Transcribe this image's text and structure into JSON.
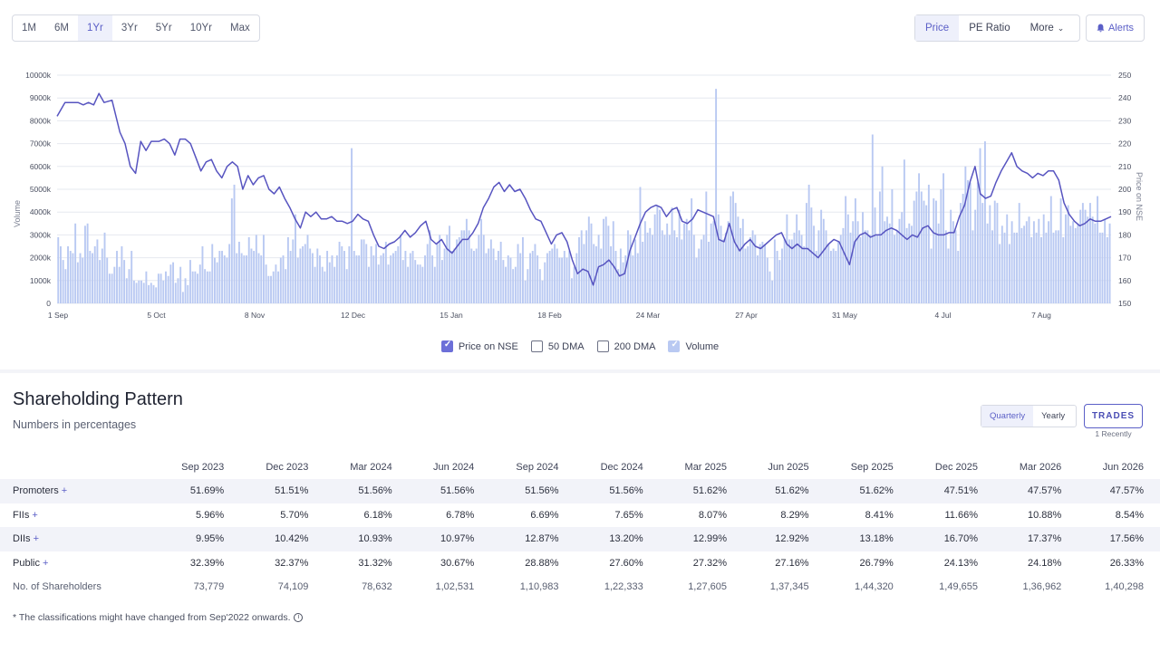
{
  "toolbar": {
    "ranges": [
      "1M",
      "6M",
      "1Yr",
      "3Yr",
      "5Yr",
      "10Yr",
      "Max"
    ],
    "active_range": "1Yr",
    "chart_types": [
      "Price",
      "PE Ratio"
    ],
    "more_label": "More",
    "alerts_label": "Alerts"
  },
  "chart_data": {
    "type": "line",
    "x_tick_labels": [
      "1 Sep",
      "5 Oct",
      "8 Nov",
      "12 Dec",
      "15 Jan",
      "18 Feb",
      "24 Mar",
      "27 Apr",
      "31 May",
      "4 Jul",
      "7 Aug"
    ],
    "y_left_label": "Volume",
    "y_left_ticks": [
      "0",
      "1000k",
      "2000k",
      "3000k",
      "4000k",
      "5000k",
      "6000k",
      "7000k",
      "8000k",
      "9000k",
      "10000k"
    ],
    "y_left_range": [
      0,
      10000
    ],
    "y_right_label": "Price on NSE",
    "y_right_ticks": [
      "150",
      "160",
      "170",
      "180",
      "190",
      "200",
      "210",
      "220",
      "230",
      "240",
      "250"
    ],
    "y_right_range": [
      150,
      250
    ],
    "grid": true,
    "price_anchors": [
      [
        0,
        232
      ],
      [
        3,
        238
      ],
      [
        8,
        238
      ],
      [
        10,
        237
      ],
      [
        12,
        238
      ],
      [
        14,
        237
      ],
      [
        16,
        242
      ],
      [
        18,
        238
      ],
      [
        21,
        239
      ],
      [
        24,
        225
      ],
      [
        26,
        220
      ],
      [
        28,
        210
      ],
      [
        30,
        207
      ],
      [
        32,
        221
      ],
      [
        34,
        217
      ],
      [
        36,
        221
      ],
      [
        39,
        221
      ],
      [
        41,
        222
      ],
      [
        43,
        220
      ],
      [
        45,
        215
      ],
      [
        47,
        222
      ],
      [
        49,
        222
      ],
      [
        51,
        220
      ],
      [
        53,
        214
      ],
      [
        55,
        208
      ],
      [
        57,
        212
      ],
      [
        59,
        213
      ],
      [
        61,
        208
      ],
      [
        63,
        205
      ],
      [
        65,
        210
      ],
      [
        67,
        212
      ],
      [
        69,
        210
      ],
      [
        71,
        200
      ],
      [
        73,
        206
      ],
      [
        75,
        202
      ],
      [
        77,
        205
      ],
      [
        79,
        206
      ],
      [
        81,
        200
      ],
      [
        83,
        198
      ],
      [
        85,
        201
      ],
      [
        87,
        196
      ],
      [
        89,
        192
      ],
      [
        91,
        187
      ],
      [
        93,
        183
      ],
      [
        95,
        190
      ],
      [
        97,
        188
      ],
      [
        99,
        190
      ],
      [
        101,
        187
      ],
      [
        103,
        187
      ],
      [
        105,
        188
      ],
      [
        107,
        186
      ],
      [
        109,
        186
      ],
      [
        111,
        185
      ],
      [
        113,
        186
      ],
      [
        115,
        189
      ],
      [
        117,
        187
      ],
      [
        119,
        186
      ],
      [
        121,
        180
      ],
      [
        123,
        175
      ],
      [
        125,
        174
      ],
      [
        127,
        176
      ],
      [
        129,
        177
      ],
      [
        131,
        179
      ],
      [
        133,
        182
      ],
      [
        135,
        179
      ],
      [
        137,
        181
      ],
      [
        139,
        184
      ],
      [
        141,
        186
      ],
      [
        143,
        178
      ],
      [
        145,
        176
      ],
      [
        147,
        178
      ],
      [
        149,
        174
      ],
      [
        151,
        172
      ],
      [
        153,
        175
      ],
      [
        155,
        178
      ],
      [
        157,
        178
      ],
      [
        159,
        181
      ],
      [
        161,
        185
      ],
      [
        163,
        192
      ],
      [
        165,
        196
      ],
      [
        167,
        201
      ],
      [
        169,
        203
      ],
      [
        171,
        199
      ],
      [
        173,
        202
      ],
      [
        175,
        199
      ],
      [
        177,
        200
      ],
      [
        179,
        196
      ],
      [
        181,
        191
      ],
      [
        183,
        187
      ],
      [
        185,
        186
      ],
      [
        187,
        181
      ],
      [
        189,
        176
      ],
      [
        191,
        180
      ],
      [
        193,
        181
      ],
      [
        195,
        177
      ],
      [
        197,
        169
      ],
      [
        199,
        163
      ],
      [
        201,
        165
      ],
      [
        203,
        164
      ],
      [
        205,
        158
      ],
      [
        207,
        166
      ],
      [
        209,
        167
      ],
      [
        211,
        169
      ],
      [
        213,
        166
      ],
      [
        215,
        162
      ],
      [
        217,
        163
      ],
      [
        219,
        173
      ],
      [
        221,
        179
      ],
      [
        223,
        185
      ],
      [
        225,
        190
      ],
      [
        227,
        192
      ],
      [
        229,
        193
      ],
      [
        231,
        192
      ],
      [
        233,
        188
      ],
      [
        235,
        191
      ],
      [
        237,
        192
      ],
      [
        239,
        186
      ],
      [
        241,
        185
      ],
      [
        243,
        187
      ],
      [
        245,
        191
      ],
      [
        247,
        190
      ],
      [
        249,
        189
      ],
      [
        251,
        188
      ],
      [
        253,
        178
      ],
      [
        255,
        177
      ],
      [
        257,
        185
      ],
      [
        259,
        177
      ],
      [
        261,
        173
      ],
      [
        263,
        176
      ],
      [
        265,
        178
      ],
      [
        267,
        175
      ],
      [
        269,
        174
      ],
      [
        271,
        176
      ],
      [
        273,
        178
      ],
      [
        275,
        180
      ],
      [
        277,
        181
      ],
      [
        279,
        176
      ],
      [
        281,
        174
      ],
      [
        283,
        176
      ],
      [
        285,
        174
      ],
      [
        287,
        174
      ],
      [
        289,
        172
      ],
      [
        291,
        170
      ],
      [
        293,
        173
      ],
      [
        295,
        176
      ],
      [
        297,
        178
      ],
      [
        299,
        177
      ],
      [
        301,
        172
      ],
      [
        303,
        167
      ],
      [
        305,
        177
      ],
      [
        307,
        180
      ],
      [
        309,
        181
      ],
      [
        311,
        179
      ],
      [
        313,
        180
      ],
      [
        315,
        180
      ],
      [
        317,
        182
      ],
      [
        319,
        183
      ],
      [
        321,
        182
      ],
      [
        323,
        180
      ],
      [
        325,
        178
      ],
      [
        327,
        180
      ],
      [
        329,
        179
      ],
      [
        331,
        183
      ],
      [
        333,
        184
      ],
      [
        335,
        181
      ],
      [
        337,
        180
      ],
      [
        339,
        180
      ],
      [
        341,
        181
      ],
      [
        343,
        181
      ],
      [
        345,
        188
      ],
      [
        347,
        193
      ],
      [
        349,
        203
      ],
      [
        351,
        210
      ],
      [
        353,
        198
      ],
      [
        355,
        196
      ],
      [
        357,
        197
      ],
      [
        359,
        203
      ],
      [
        361,
        208
      ],
      [
        363,
        212
      ],
      [
        365,
        216
      ],
      [
        367,
        210
      ],
      [
        369,
        208
      ],
      [
        371,
        207
      ],
      [
        373,
        205
      ],
      [
        375,
        207
      ],
      [
        377,
        206
      ],
      [
        379,
        208
      ],
      [
        381,
        208
      ],
      [
        383,
        204
      ],
      [
        385,
        194
      ],
      [
        387,
        189
      ],
      [
        389,
        186
      ],
      [
        391,
        184
      ],
      [
        393,
        185
      ],
      [
        395,
        187
      ],
      [
        397,
        186
      ],
      [
        399,
        186
      ],
      [
        401,
        187
      ],
      [
        403,
        188
      ]
    ],
    "volume_bars_k": [
      2900,
      2500,
      1900,
      1500,
      2500,
      2300,
      2200,
      3500,
      1800,
      2200,
      2000,
      3400,
      3500,
      2300,
      2200,
      2500,
      2800,
      1900,
      2400,
      3100,
      2000,
      1300,
      1300,
      1600,
      2300,
      1600,
      2500,
      1900,
      1100,
      1500,
      2300,
      1000,
      900,
      1000,
      1000,
      900,
      1400,
      800,
      900,
      800,
      700,
      1300,
      1300,
      1000,
      1400,
      1200,
      1700,
      1800,
      900,
      1100,
      1600,
      500,
      1100,
      800,
      1900,
      1400,
      1400,
      1300,
      1700,
      2500,
      1500,
      1400,
      1400,
      2600,
      2000,
      1800,
      2300,
      2300,
      2100,
      2000,
      2600,
      4600,
      5200,
      2200,
      2700,
      2200,
      2100,
      2100,
      2900,
      2400,
      2300,
      3000,
      2200,
      2100,
      3000,
      1700,
      1200,
      1200,
      1400,
      1700,
      1400,
      2000,
      2100,
      1500,
      2900,
      2300,
      2800,
      3900,
      2000,
      2400,
      2500,
      2600,
      3000,
      2400,
      2200,
      1600,
      2400,
      2100,
      1600,
      1400,
      2300,
      1800,
      2100,
      1600,
      2100,
      2700,
      2500,
      2300,
      1500,
      2500,
      6800,
      2300,
      2100,
      2100,
      2800,
      2800,
      2600,
      1600,
      2500,
      2100,
      2600,
      1700,
      2100,
      2200,
      2700,
      1700,
      2100,
      2200,
      2300,
      2500,
      3000,
      1900,
      2300,
      1600,
      2200,
      2300,
      1900,
      1700,
      1700,
      1600,
      2100,
      2600,
      3200,
      2100,
      1600,
      2600,
      3000,
      1900,
      2400,
      3000,
      3400,
      2300,
      2400,
      2800,
      2900,
      3200,
      3200,
      3700,
      3200,
      2400,
      2300,
      2400,
      3000,
      3700,
      3000,
      2200,
      2400,
      2800,
      2400,
      1900,
      2300,
      2700,
      1900,
      1600,
      2100,
      2000,
      1500,
      1600,
      2600,
      2200,
      2900,
      1000,
      1500,
      2200,
      2300,
      2600,
      2100,
      1500,
      1000,
      1800,
      2200,
      2300,
      2400,
      2600,
      2400,
      2000,
      2000,
      2300,
      2000,
      2300,
      1100,
      1600,
      2200,
      2900,
      3200,
      2600,
      3200,
      3800,
      3500,
      2600,
      2500,
      3000,
      2400,
      3700,
      3800,
      3400,
      2500,
      3600,
      2300,
      1500,
      2400,
      1800,
      2100,
      3200,
      3000,
      2100,
      2800,
      2200,
      5100,
      2700,
      3600,
      3100,
      3300,
      3000,
      3900,
      4300,
      4100,
      3200,
      3000,
      3500,
      3000,
      4200,
      3200,
      2900,
      4100,
      2800,
      3500,
      3700,
      3200,
      4600,
      3000,
      2000,
      2400,
      2800,
      3000,
      4900,
      2700,
      3500,
      3600,
      9400,
      3900,
      3400,
      2800,
      3100,
      3600,
      4700,
      4900,
      4400,
      3800,
      3300,
      3700,
      2400,
      2500,
      2900,
      3200,
      3000,
      2100,
      2600,
      2700,
      2600,
      2000,
      1400,
      1000,
      2800,
      2300,
      1900,
      2400,
      2800,
      3900,
      2800,
      2800,
      3100,
      3900,
      3200,
      3000,
      2500,
      4400,
      5200,
      4200,
      3400,
      2300,
      3200,
      4100,
      3700,
      3200,
      2600,
      2300,
      2400,
      2300,
      2700,
      3000,
      3300,
      4700,
      3900,
      3100,
      3600,
      4600,
      3600,
      2900,
      4000,
      3200,
      3200,
      3000,
      7400,
      4200,
      3000,
      4900,
      6000,
      3600,
      3800,
      3500,
      5000,
      3000,
      3200,
      3700,
      4000,
      6300,
      3300,
      3500,
      3400,
      4500,
      4900,
      5700,
      4900,
      4500,
      4300,
      5200,
      2400,
      4600,
      4500,
      3500,
      5000,
      5700,
      3200,
      2400,
      4100,
      3600,
      3200,
      2300,
      4400,
      4800,
      6000,
      5400,
      5300,
      3200,
      4100,
      5300,
      6800,
      4400,
      7100,
      3500,
      4300,
      3200,
      4500,
      4400,
      2600,
      3400,
      3100,
      3900,
      2600,
      3600,
      3100,
      3100,
      4400,
      3300,
      3400,
      3600,
      3800,
      2900,
      3600,
      3100,
      3700,
      2900,
      3900,
      3100,
      3600,
      4700,
      3100,
      3200,
      3200,
      4600,
      2900,
      3900,
      4300,
      3400,
      3600,
      3300,
      3500,
      4100,
      4400,
      4100,
      3800,
      4400,
      3800,
      3500,
      4700,
      3100,
      3100,
      3700,
      2900,
      3500
    ]
  },
  "legend": {
    "items": [
      {
        "label": "Price on NSE",
        "checked": true,
        "style": "checked"
      },
      {
        "label": "50 DMA",
        "checked": false,
        "style": ""
      },
      {
        "label": "200 DMA",
        "checked": false,
        "style": ""
      },
      {
        "label": "Volume",
        "checked": true,
        "style": "vol"
      }
    ]
  },
  "shareholding": {
    "title": "Shareholding Pattern",
    "subtitle": "Numbers in percentages",
    "period_options": [
      "Quarterly",
      "Yearly"
    ],
    "active_period": "Quarterly",
    "trades_label": "TRADES",
    "trades_note": "1 Recently",
    "columns": [
      "Sep 2023",
      "Dec 2023",
      "Mar 2024",
      "Jun 2024",
      "Sep 2024",
      "Dec 2024",
      "Mar 2025",
      "Jun 2025",
      "Sep 2025",
      "Dec 2025",
      "Mar 2026",
      "Jun 2026"
    ],
    "rows": [
      {
        "label": "Promoters",
        "expandable": true,
        "values": [
          "51.69%",
          "51.51%",
          "51.56%",
          "51.56%",
          "51.56%",
          "51.56%",
          "51.62%",
          "51.62%",
          "51.62%",
          "47.51%",
          "47.57%",
          "47.57%"
        ]
      },
      {
        "label": "FIIs",
        "expandable": true,
        "values": [
          "5.96%",
          "5.70%",
          "6.18%",
          "6.78%",
          "6.69%",
          "7.65%",
          "8.07%",
          "8.29%",
          "8.41%",
          "11.66%",
          "10.88%",
          "8.54%"
        ]
      },
      {
        "label": "DIIs",
        "expandable": true,
        "values": [
          "9.95%",
          "10.42%",
          "10.93%",
          "10.97%",
          "12.87%",
          "13.20%",
          "12.99%",
          "12.92%",
          "13.18%",
          "16.70%",
          "17.37%",
          "17.56%"
        ]
      },
      {
        "label": "Public",
        "expandable": true,
        "values": [
          "32.39%",
          "32.37%",
          "31.32%",
          "30.67%",
          "28.88%",
          "27.60%",
          "27.32%",
          "27.16%",
          "26.79%",
          "24.13%",
          "24.18%",
          "26.33%"
        ]
      },
      {
        "label": "No. of Shareholders",
        "expandable": false,
        "values": [
          "73,779",
          "74,109",
          "78,632",
          "1,02,531",
          "1,10,983",
          "1,22,333",
          "1,27,605",
          "1,37,345",
          "1,44,320",
          "1,49,655",
          "1,36,962",
          "1,40,298"
        ]
      }
    ],
    "footnote": "* The classifications might have changed from Sep'2022 onwards."
  }
}
